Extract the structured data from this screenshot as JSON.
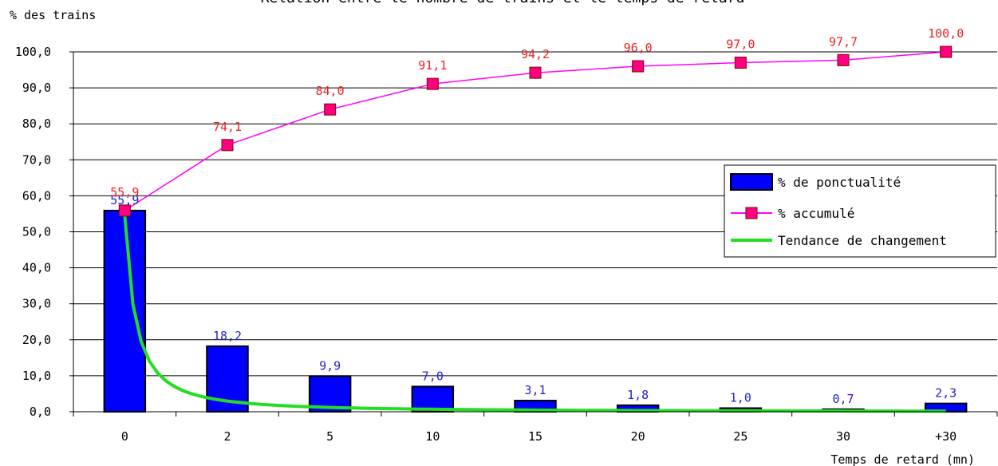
{
  "chart_data": {
    "type": "bar",
    "title": "Relation entre le nombre de trains et le temps de retard",
    "ylabel": "% des trains",
    "xlabel": "Temps de retard (mn)",
    "ylim": [
      0,
      100
    ],
    "yticks": [
      "0,0",
      "10,0",
      "20,0",
      "30,0",
      "40,0",
      "50,0",
      "60,0",
      "70,0",
      "80,0",
      "90,0",
      "100,0"
    ],
    "categories": [
      "0",
      "2",
      "5",
      "10",
      "15",
      "20",
      "25",
      "30",
      "+30"
    ],
    "series": [
      {
        "name": "% de ponctualité",
        "kind": "bar",
        "color": "#0000ff",
        "values": [
          55.9,
          18.2,
          9.9,
          7.0,
          3.1,
          1.8,
          1.0,
          0.7,
          2.3
        ],
        "labels": [
          "55,9",
          "18,2",
          "9,9",
          "7,0",
          "3,1",
          "1,8",
          "1,0",
          "0,7",
          "2,3"
        ],
        "label_color": "#2222cc"
      },
      {
        "name": "% accumulé",
        "kind": "line",
        "color": "#ff00ff",
        "marker_color": "#ff0080",
        "values": [
          55.9,
          74.1,
          84.0,
          91.1,
          94.2,
          96.0,
          97.0,
          97.7,
          100.0
        ],
        "labels": [
          "55,9",
          "74,1",
          "84,0",
          "91,1",
          "94,2",
          "96,0",
          "97,0",
          "97,7",
          "100,0"
        ],
        "label_color": "#ee2222"
      },
      {
        "name": "Tendance de changement",
        "kind": "trend",
        "color": "#22dd22"
      }
    ],
    "grid": true,
    "legend_position": "right"
  }
}
